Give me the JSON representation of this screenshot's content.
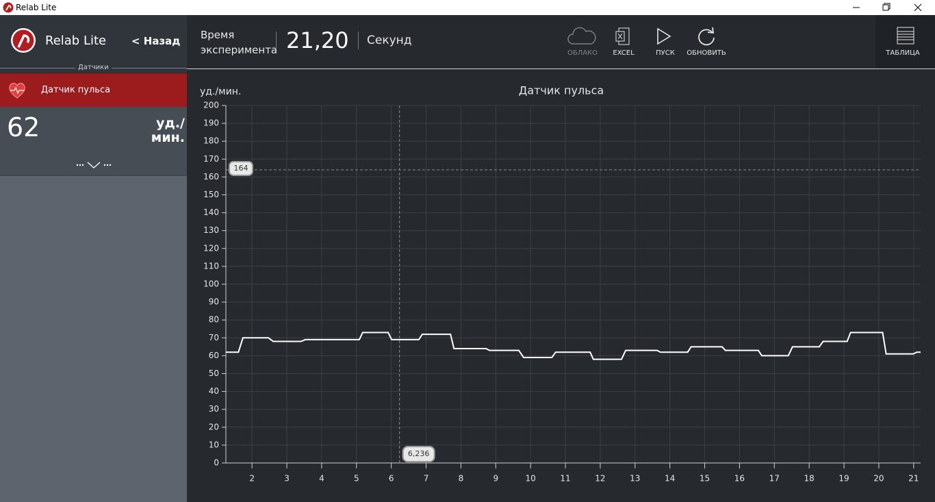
{
  "window": {
    "title": "Relab Lite"
  },
  "sidebar": {
    "app_name": "Relab Lite",
    "back": "< Назад",
    "section": "Датчики",
    "sensor": {
      "name": "Датчик пульса",
      "value": 62,
      "unit": "уд./\nмин."
    }
  },
  "toolbar": {
    "time_label": "Время\nэксперимента",
    "time_value": "21,20",
    "time_unit": "Секунд",
    "buttons": [
      "ОБЛАКО",
      "EXCEL",
      "ПУСК",
      "ОБНОВИТЬ",
      "ТАБЛИЦА"
    ]
  },
  "chart_data": {
    "type": "line",
    "title": "Датчик пульса",
    "y_label": "уд./мин.",
    "color": "#ffffff",
    "grid": true,
    "x": [
      1.25,
      1.61,
      1.74,
      2.47,
      2.61,
      3.41,
      3.53,
      5.08,
      5.18,
      5.91,
      6.01,
      6.79,
      6.89,
      7.7,
      7.8,
      8.72,
      8.82,
      9.66,
      9.8,
      10.61,
      10.72,
      11.71,
      11.8,
      12.61,
      12.73,
      13.63,
      13.73,
      14.51,
      14.61,
      15.5,
      15.59,
      16.54,
      16.64,
      17.4,
      17.52,
      18.29,
      18.4,
      19.09,
      19.19,
      20.11,
      20.21,
      20.99,
      21.09,
      21.2
    ],
    "values": [
      62,
      62,
      70,
      70,
      68,
      68,
      69,
      69,
      73,
      73,
      69,
      69,
      72,
      72,
      64,
      64,
      63,
      63,
      59,
      59,
      62,
      62,
      58,
      58,
      63,
      63,
      62,
      62,
      65,
      65,
      63,
      63,
      60,
      60,
      65,
      65,
      68,
      68,
      73,
      73,
      61,
      61,
      62,
      62
    ],
    "xlim": [
      1.25,
      21.2
    ],
    "xticks": [
      2,
      3,
      4,
      5,
      6,
      7,
      8,
      9,
      10,
      11,
      12,
      13,
      14,
      15,
      16,
      17,
      18,
      19,
      20,
      21
    ],
    "ylim": [
      0,
      200
    ],
    "yticks": [
      0,
      10,
      20,
      30,
      40,
      50,
      60,
      70,
      80,
      90,
      100,
      110,
      120,
      130,
      140,
      150,
      160,
      170,
      180,
      190,
      200
    ],
    "crosshair": {
      "x": {
        "value": 6.236,
        "label": "6,236"
      },
      "y": 164
    }
  }
}
